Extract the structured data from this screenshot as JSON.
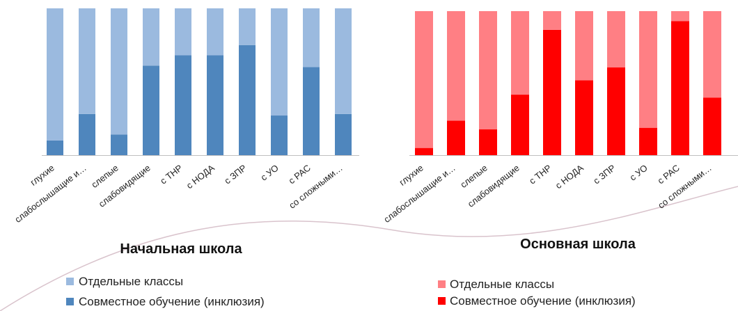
{
  "colors": {
    "left_separate": "#9BBADF",
    "left_joint": "#4F86BD",
    "right_separate": "#FF7F84",
    "right_joint": "#FF0000",
    "axis": "#BFBFBF",
    "decor_arc": "#D9C3CC"
  },
  "chart_data": [
    {
      "type": "bar",
      "stacked": true,
      "title": "Начальная школа",
      "categories": [
        "глухие",
        "слабослышащие и…",
        "слепые",
        "слабовидящие",
        "с ТНР",
        "с НОДА",
        "с ЗПР",
        "с УО",
        "с РАС",
        "со сложными…"
      ],
      "ylim": [
        0,
        100
      ],
      "grid": false,
      "legend_position": "bottom-left",
      "series": [
        {
          "name": "Совместное обучение (инклюзия)",
          "values": [
            10,
            28,
            14,
            61,
            68,
            68,
            75,
            27,
            60,
            28
          ]
        },
        {
          "name": "Отдельные классы",
          "values": [
            90,
            72,
            86,
            39,
            32,
            32,
            25,
            73,
            40,
            72
          ]
        }
      ]
    },
    {
      "type": "bar",
      "stacked": true,
      "title": "Основная школа",
      "categories": [
        "глухие",
        "слабослышащие и…",
        "слепые",
        "слабовидящие",
        "с ТНР",
        "с НОДА",
        "с ЗПР",
        "с УО",
        "с РАС",
        "со сложными…"
      ],
      "ylim": [
        0,
        100
      ],
      "grid": false,
      "legend_position": "bottom",
      "series": [
        {
          "name": "Совместное обучение (инклюзия)",
          "values": [
            5,
            24,
            18,
            42,
            87,
            52,
            61,
            19,
            93,
            40
          ]
        },
        {
          "name": "Отдельные классы",
          "values": [
            95,
            76,
            82,
            58,
            13,
            48,
            39,
            81,
            7,
            60
          ]
        }
      ]
    }
  ]
}
